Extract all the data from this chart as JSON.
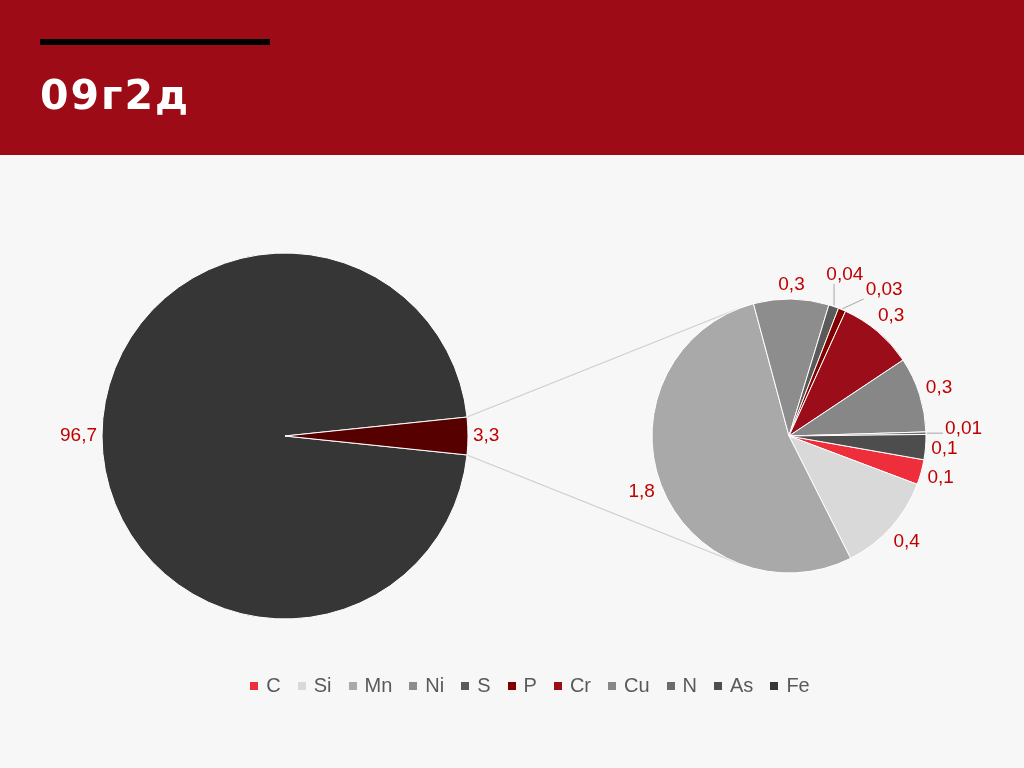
{
  "chart_data": [
    {
      "type": "pie",
      "title": "09г2д",
      "categories": [
        "Fe",
        null
      ],
      "values": [
        96.7,
        3.3
      ],
      "colors": [
        "#363636",
        "#560000"
      ],
      "value_labels": [
        "96,7",
        "3,3"
      ],
      "legend": "bottom"
    },
    {
      "type": "pie",
      "categories": [
        "C",
        "Si",
        "Mn",
        "Ni",
        "S",
        "P",
        "Cr",
        "Cu",
        "N",
        "As"
      ],
      "values": [
        0.1,
        0.4,
        1.8,
        0.3,
        0.04,
        0.03,
        0.3,
        0.3,
        0.01,
        0.1
      ],
      "colors": [
        "#ee2e3b",
        "#d9d9d9",
        "#a9a9a9",
        "#8d8d8d",
        "#5a5a5a",
        "#800000",
        "#9b0d18",
        "#878787",
        "#6b6b6b",
        "#4d4d4d"
      ],
      "value_labels": [
        "0,1",
        "0,4",
        "1,8",
        "0,3",
        "0,04",
        "0,03",
        "0,3",
        "0,3",
        "0,01",
        "0,1"
      ],
      "legend": "bottom"
    }
  ]
}
